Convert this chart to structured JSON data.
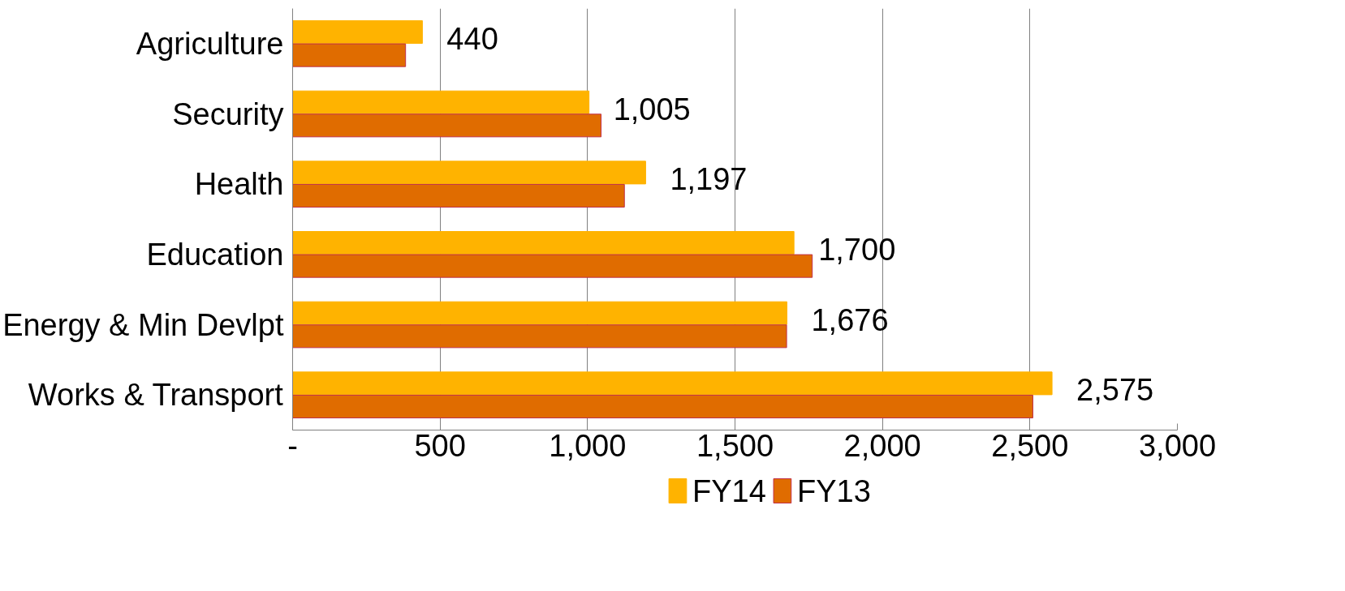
{
  "chart_data": {
    "type": "bar",
    "orientation": "horizontal",
    "categories": [
      "Agriculture",
      "Security",
      "Health",
      "Education",
      "Energy & Min Devlpt",
      "Works & Transport"
    ],
    "series": [
      {
        "name": "FY14",
        "color": "#ffb300",
        "values": [
          440,
          1005,
          1197,
          1700,
          1676,
          2575
        ],
        "value_labels": [
          "440",
          "1,005",
          "1,197",
          "1,700",
          "1,676",
          "2,575"
        ]
      },
      {
        "name": "FY13",
        "color": "#e06c00",
        "values": [
          383,
          1046,
          1125,
          1762,
          1675,
          2510
        ]
      }
    ],
    "xlim": [
      0,
      3000
    ],
    "xticks": [
      {
        "value": 0,
        "label": "-"
      },
      {
        "value": 500,
        "label": "500"
      },
      {
        "value": 1000,
        "label": "1,000"
      },
      {
        "value": 1500,
        "label": "1,500"
      },
      {
        "value": 2000,
        "label": "2,000"
      },
      {
        "value": 2500,
        "label": "2,500"
      },
      {
        "value": 3000,
        "label": "3,000"
      }
    ],
    "grid": "x",
    "legend": "bottom"
  }
}
